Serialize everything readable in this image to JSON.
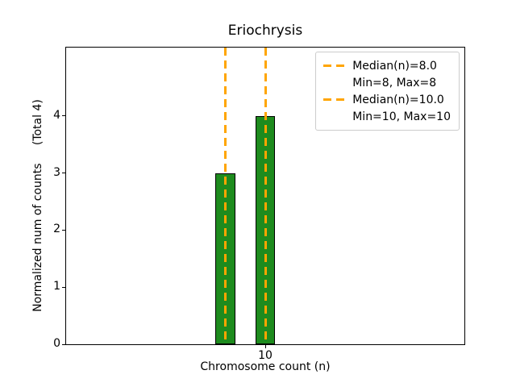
{
  "figure": {
    "background": "#ffffff"
  },
  "chart_data": {
    "type": "bar",
    "title": "Eriochrysis",
    "xlabel": "Chromosome count (n)",
    "ylabel": "Normalized num of counts     (Total 4)",
    "xlim": [
      0,
      20
    ],
    "ylim": [
      0,
      5.2
    ],
    "xticks": [
      10
    ],
    "yticks": [
      0,
      1,
      2,
      3,
      4
    ],
    "grid": false,
    "bar_color": "#1e8b1e",
    "bar_edge_color": "#000000",
    "bars": [
      {
        "x": 8,
        "height": 3,
        "width": 1
      },
      {
        "x": 10,
        "height": 4,
        "width": 1
      }
    ],
    "vlines": [
      {
        "x": 8,
        "color": "#FFA500",
        "style": "dashed"
      },
      {
        "x": 10,
        "color": "#FFA500",
        "style": "dashed"
      }
    ],
    "legend": {
      "position": "upper right",
      "entries": [
        {
          "handle": "dashed-line",
          "handle_color": "#FFA500",
          "label": "Median(n)=8.0"
        },
        {
          "handle": "none",
          "handle_color": "",
          "label": "Min=8, Max=8"
        },
        {
          "handle": "dashed-line",
          "handle_color": "#FFA500",
          "label": "Median(n)=10.0"
        },
        {
          "handle": "none",
          "handle_color": "",
          "label": "Min=10, Max=10"
        }
      ]
    }
  }
}
